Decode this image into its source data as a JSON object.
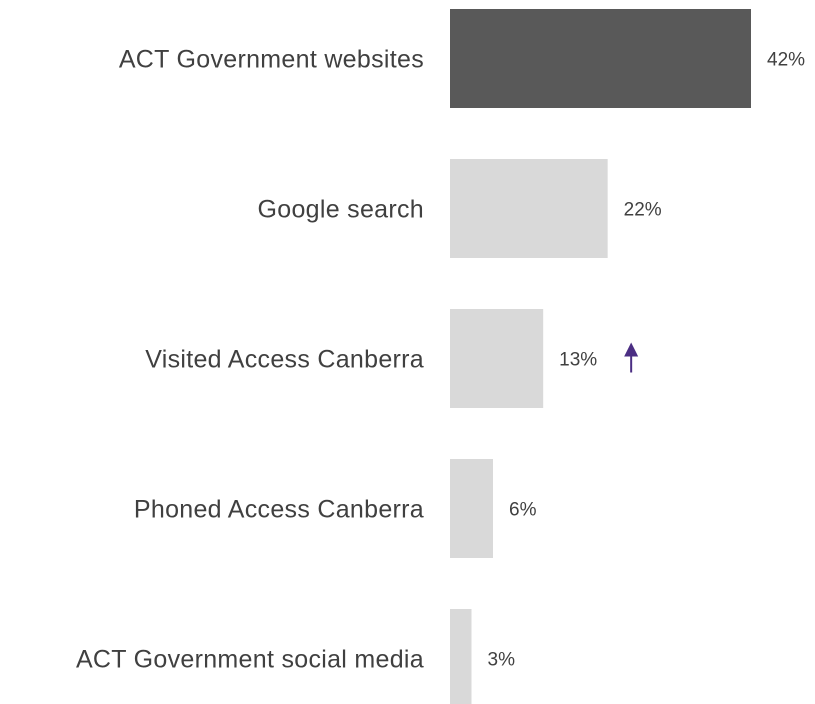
{
  "chart_data": {
    "type": "bar",
    "orientation": "horizontal",
    "categories": [
      "ACT Government websites",
      "Google search",
      "Visited Access Canberra",
      "Phoned Access Canberra",
      "ACT Government social media"
    ],
    "values": [
      42,
      22,
      13,
      6,
      3
    ],
    "value_labels": [
      "42%",
      "22%",
      "13%",
      "6%",
      "3%"
    ],
    "unit": "%",
    "xlim": [
      0,
      42
    ],
    "highlight_index": 0,
    "colors": {
      "highlight": "#595959",
      "default": "#d9d9d9",
      "arrow": "#4b2e83",
      "text": "#404040"
    },
    "annotations": [
      {
        "category_index": 2,
        "icon": "up-arrow-icon",
        "meaning": "significant increase"
      }
    ],
    "grid": false,
    "legend": "none"
  }
}
